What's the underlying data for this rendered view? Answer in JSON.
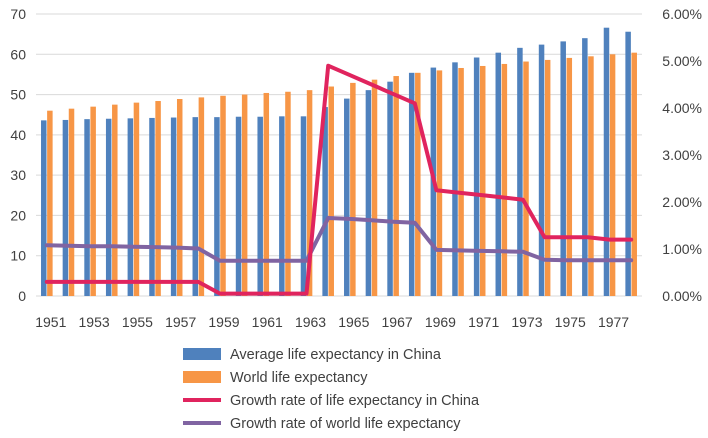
{
  "chart_data": {
    "type": "bar",
    "years": [
      1951,
      1952,
      1953,
      1954,
      1955,
      1956,
      1957,
      1958,
      1959,
      1960,
      1961,
      1962,
      1963,
      1964,
      1965,
      1966,
      1967,
      1968,
      1969,
      1970,
      1971,
      1972,
      1973,
      1974,
      1975,
      1976,
      1977,
      1978
    ],
    "x_tick_labels": [
      "1951",
      "1953",
      "1955",
      "1957",
      "1959",
      "1961",
      "1963",
      "1965",
      "1967",
      "1969",
      "1971",
      "1973",
      "1975",
      "1977"
    ],
    "left_axis": {
      "ylim": [
        0,
        70
      ],
      "ticks": [
        "0",
        "10",
        "20",
        "30",
        "40",
        "50",
        "60",
        "70"
      ]
    },
    "right_axis": {
      "ylim": [
        0,
        6
      ],
      "ticks": [
        "0.00%",
        "1.00%",
        "2.00%",
        "3.00%",
        "4.00%",
        "5.00%",
        "6.00%"
      ]
    },
    "series": [
      {
        "name": "Average life expectancy in China",
        "kind": "bar",
        "axis": "left",
        "color": "#4f81bd",
        "values": [
          43.6,
          43.7,
          43.9,
          44.0,
          44.1,
          44.2,
          44.3,
          44.4,
          44.4,
          44.5,
          44.5,
          44.6,
          44.6,
          46.9,
          49.0,
          51.1,
          53.2,
          55.4,
          56.7,
          58.0,
          59.2,
          60.4,
          61.6,
          62.4,
          63.2,
          64.0,
          66.6,
          65.6
        ]
      },
      {
        "name": "World life expectancy",
        "kind": "bar",
        "axis": "left",
        "color": "#f79646",
        "values": [
          46.0,
          46.5,
          47.0,
          47.5,
          48.0,
          48.4,
          48.9,
          49.3,
          49.7,
          50.0,
          50.4,
          50.7,
          51.1,
          52.0,
          52.9,
          53.7,
          54.6,
          55.4,
          56.0,
          56.6,
          57.1,
          57.6,
          58.2,
          58.6,
          59.1,
          59.5,
          60.0,
          60.4
        ]
      },
      {
        "name": "Growth rate of life expectancy in China",
        "kind": "line",
        "axis": "right",
        "color": "#e0245e",
        "values": [
          0.3,
          0.3,
          0.3,
          0.3,
          0.3,
          0.3,
          0.3,
          0.3,
          0.05,
          0.05,
          0.05,
          0.05,
          0.05,
          4.9,
          4.7,
          4.5,
          4.3,
          4.1,
          2.25,
          2.2,
          2.15,
          2.1,
          2.05,
          1.25,
          1.25,
          1.25,
          1.2,
          1.2
        ]
      },
      {
        "name": "Growth rate of world life expectancy",
        "kind": "line",
        "axis": "right",
        "color": "#8064a2",
        "values": [
          1.08,
          1.07,
          1.06,
          1.06,
          1.05,
          1.04,
          1.03,
          1.01,
          0.75,
          0.75,
          0.75,
          0.75,
          0.75,
          1.66,
          1.64,
          1.61,
          1.58,
          1.56,
          0.98,
          0.97,
          0.96,
          0.95,
          0.94,
          0.77,
          0.76,
          0.76,
          0.76,
          0.76
        ]
      }
    ],
    "legend_position": "bottom",
    "grid": true
  }
}
